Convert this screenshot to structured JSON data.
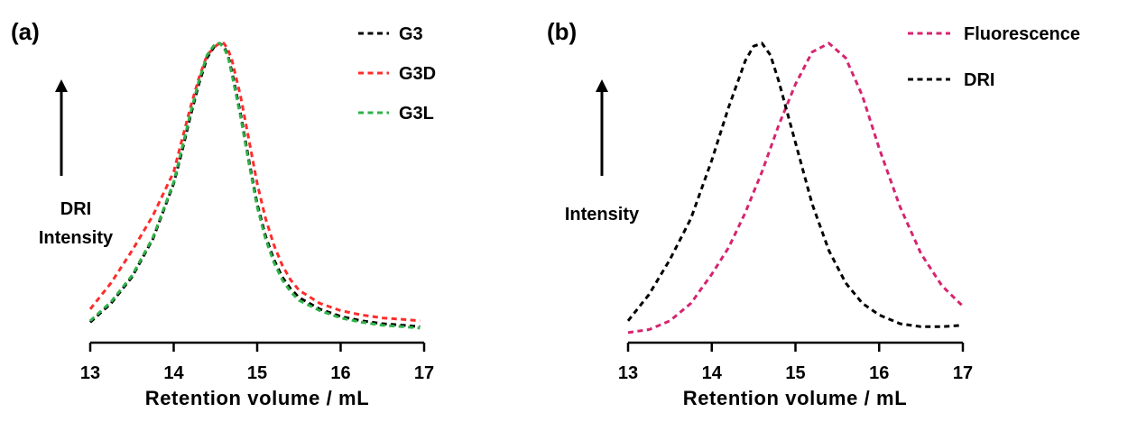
{
  "chart_data": [
    {
      "type": "line",
      "panel_label": "(a)",
      "xlabel": "Retention volume / mL",
      "ylabel": [
        "DRI",
        "Intensity"
      ],
      "xlim": [
        13,
        17
      ],
      "xticks": [
        "13",
        "14",
        "15",
        "16",
        "17"
      ],
      "ylim": [
        0,
        1
      ],
      "y_ticks_shown": false,
      "grid": false,
      "legend_position": "top-right",
      "x": [
        13.0,
        13.25,
        13.5,
        13.75,
        14.0,
        14.1,
        14.2,
        14.3,
        14.4,
        14.5,
        14.55,
        14.6,
        14.65,
        14.7,
        14.8,
        14.9,
        15.0,
        15.1,
        15.2,
        15.3,
        15.4,
        15.5,
        15.75,
        16.0,
        16.25,
        16.5,
        16.75,
        16.95
      ],
      "series": [
        {
          "name": "G3",
          "color": "#000000",
          "values": [
            0.045,
            0.11,
            0.2,
            0.33,
            0.52,
            0.63,
            0.75,
            0.86,
            0.95,
            0.995,
            1.0,
            0.99,
            0.96,
            0.9,
            0.76,
            0.6,
            0.45,
            0.34,
            0.26,
            0.2,
            0.16,
            0.13,
            0.09,
            0.065,
            0.05,
            0.04,
            0.035,
            0.03
          ]
        },
        {
          "name": "G3D",
          "color": "#ff2b2b",
          "values": [
            0.09,
            0.18,
            0.29,
            0.41,
            0.56,
            0.67,
            0.78,
            0.88,
            0.96,
            0.99,
            1.0,
            1.0,
            0.98,
            0.94,
            0.82,
            0.67,
            0.52,
            0.4,
            0.31,
            0.24,
            0.19,
            0.155,
            0.11,
            0.085,
            0.07,
            0.06,
            0.055,
            0.05
          ]
        },
        {
          "name": "G3L",
          "color": "#2fb34a",
          "values": [
            0.05,
            0.115,
            0.205,
            0.335,
            0.525,
            0.64,
            0.76,
            0.87,
            0.96,
            1.0,
            1.0,
            0.985,
            0.955,
            0.89,
            0.75,
            0.59,
            0.44,
            0.33,
            0.25,
            0.19,
            0.15,
            0.12,
            0.085,
            0.06,
            0.045,
            0.035,
            0.03,
            0.025
          ]
        }
      ]
    },
    {
      "type": "line",
      "panel_label": "(b)",
      "xlabel": "Retention volume / mL",
      "ylabel": [
        "Intensity"
      ],
      "xlim": [
        13,
        17
      ],
      "xticks": [
        "13",
        "14",
        "15",
        "16",
        "17"
      ],
      "ylim": [
        0,
        1
      ],
      "y_ticks_shown": false,
      "grid": false,
      "legend_position": "top-right",
      "x": [
        13.0,
        13.25,
        13.5,
        13.75,
        14.0,
        14.2,
        14.4,
        14.5,
        14.6,
        14.7,
        14.8,
        15.0,
        15.2,
        15.4,
        15.6,
        15.8,
        16.0,
        16.25,
        16.5,
        16.75,
        17.0
      ],
      "series": [
        {
          "name": "Fluorescence",
          "color": "#d6246f",
          "values": [
            0.01,
            0.02,
            0.05,
            0.11,
            0.21,
            0.3,
            0.42,
            0.49,
            0.56,
            0.64,
            0.72,
            0.86,
            0.97,
            1.0,
            0.95,
            0.82,
            0.64,
            0.44,
            0.28,
            0.17,
            0.1
          ]
        },
        {
          "name": "DRI",
          "color": "#000000",
          "values": [
            0.05,
            0.14,
            0.26,
            0.4,
            0.6,
            0.78,
            0.94,
            0.99,
            1.0,
            0.96,
            0.87,
            0.66,
            0.45,
            0.29,
            0.18,
            0.11,
            0.07,
            0.04,
            0.03,
            0.03,
            0.035
          ]
        }
      ]
    }
  ]
}
